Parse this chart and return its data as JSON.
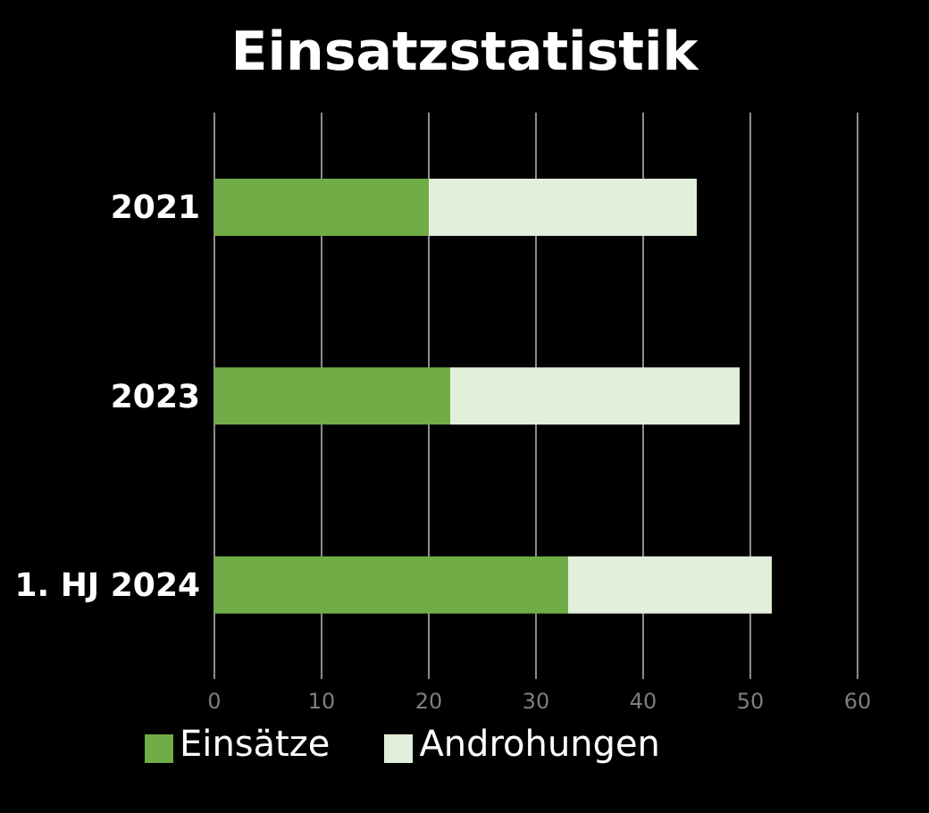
{
  "chart_data": {
    "type": "bar",
    "title": "Einsatzstatistik",
    "orientation": "horizontal",
    "stacked": true,
    "categories": [
      "2021",
      "2023",
      "1. HJ 2024"
    ],
    "series": [
      {
        "name": "Einsätze",
        "color": "#70ad47",
        "values": [
          20,
          22,
          33
        ]
      },
      {
        "name": "Androhungen",
        "color": "#e2efda",
        "values": [
          25,
          27,
          19
        ]
      }
    ],
    "xlim": [
      0,
      60
    ],
    "xticks": [
      0,
      10,
      20,
      30,
      40,
      50,
      60
    ],
    "grid": "x",
    "legend": "bottom"
  }
}
